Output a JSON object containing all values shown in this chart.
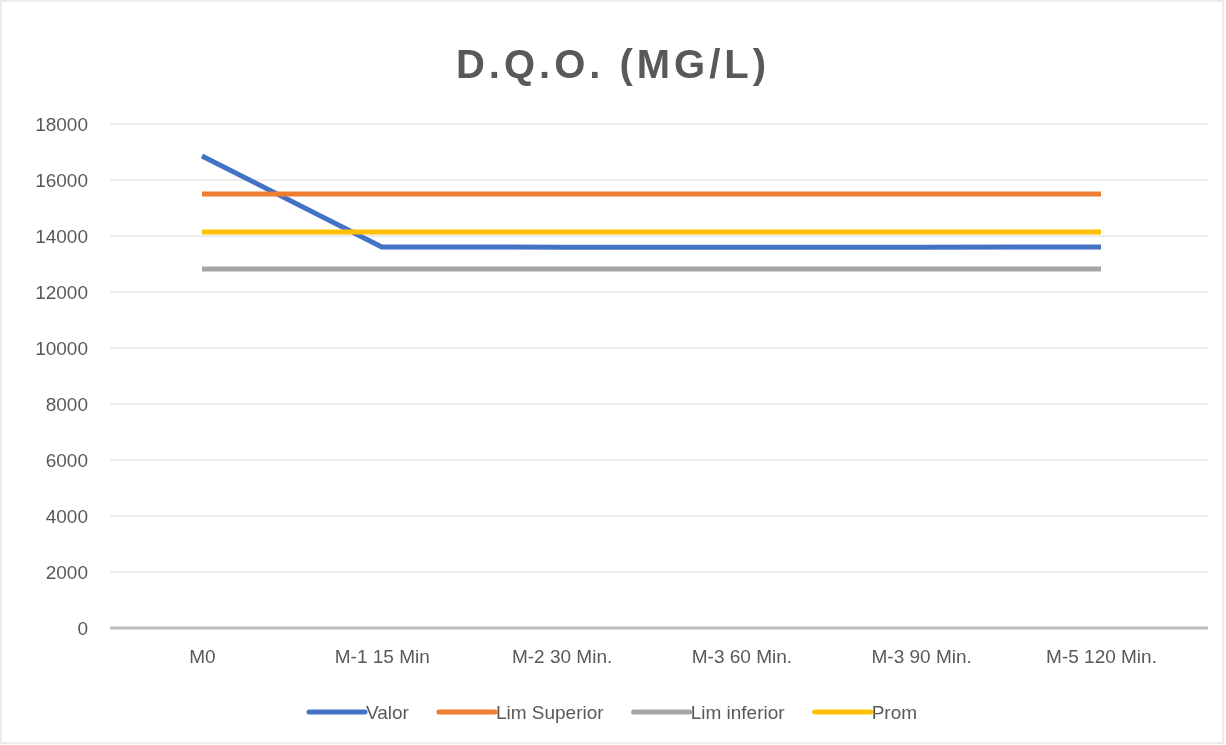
{
  "chart_data": {
    "type": "line",
    "title": "D.Q.O. (MG/L)",
    "categories": [
      "M0",
      "M-1 15 Min",
      "M-2 30 Min.",
      "M-3 60 Min.",
      "M-3 90 Min.",
      "M-5 120 Min."
    ],
    "series": [
      {
        "name": "Valor",
        "color": "#4472c4",
        "values": [
          16860,
          13610,
          13600,
          13600,
          13600,
          13610
        ]
      },
      {
        "name": "Lim Superior",
        "color": "#ed7d31",
        "values": [
          15500,
          15500,
          15500,
          15500,
          15500,
          15500
        ]
      },
      {
        "name": "Lim inferior",
        "color": "#a5a5a5",
        "values": [
          12820,
          12820,
          12820,
          12820,
          12820,
          12820
        ]
      },
      {
        "name": "Prom",
        "color": "#ffc000",
        "values": [
          14140,
          14140,
          14140,
          14140,
          14140,
          14140
        ]
      }
    ],
    "ylim": [
      0,
      18000
    ],
    "yticks": [
      0,
      2000,
      4000,
      6000,
      8000,
      10000,
      12000,
      14000,
      16000,
      18000
    ],
    "grid": "y",
    "legend": "bottom",
    "marker": "none",
    "line_style": "solid"
  }
}
